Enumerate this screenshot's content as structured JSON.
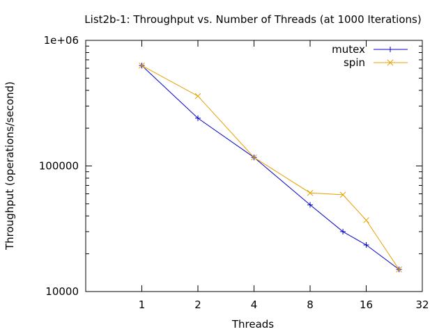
{
  "chart_data": {
    "type": "line",
    "title": "List2b-1: Throughput vs. Number of Threads (at 1000 Iterations)",
    "xlabel": "Threads",
    "ylabel": "Throughput (operations/second)",
    "x_scale": "log2",
    "y_scale": "log10",
    "xlim": [
      0.5,
      32
    ],
    "ylim": [
      10000,
      1000000
    ],
    "x_ticks": [
      {
        "value": 1,
        "label": "1"
      },
      {
        "value": 2,
        "label": "2"
      },
      {
        "value": 4,
        "label": "4"
      },
      {
        "value": 8,
        "label": "8"
      },
      {
        "value": 16,
        "label": "16"
      },
      {
        "value": 32,
        "label": "32"
      }
    ],
    "y_ticks": [
      {
        "value": 10000,
        "label": "10000"
      },
      {
        "value": 100000,
        "label": "100000"
      },
      {
        "value": 1000000,
        "label": "1e+06"
      }
    ],
    "grid": false,
    "legend_position": "top-right",
    "series": [
      {
        "name": "mutex",
        "color": "#0000cc",
        "marker": "plus",
        "x": [
          1,
          2,
          4,
          8,
          12,
          16,
          24
        ],
        "y": [
          630000,
          240000,
          117000,
          49000,
          30000,
          23500,
          15000
        ]
      },
      {
        "name": "spin",
        "color": "#e6a000",
        "marker": "cross",
        "x": [
          1,
          2,
          4,
          8,
          12,
          16,
          24
        ],
        "y": [
          630000,
          360000,
          117000,
          61000,
          59000,
          37000,
          15000
        ]
      }
    ]
  }
}
